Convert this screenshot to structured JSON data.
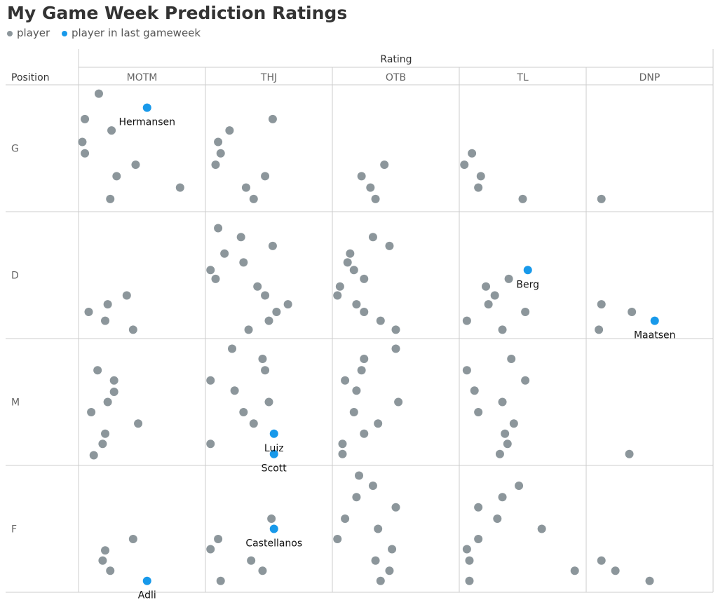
{
  "title": "My Game Week Prediction Ratings",
  "legend": {
    "player": "player",
    "last": "player in last gameweek"
  },
  "colors": {
    "player": "#8c969b",
    "last": "#1899ea",
    "grid": "#cccccc"
  },
  "chart_data": {
    "type": "scatter",
    "title": "My Game Week Prediction Ratings",
    "column_group_label": "Rating",
    "row_header": "Position",
    "columns": [
      "MOTM",
      "THJ",
      "OTB",
      "TL",
      "DNP"
    ],
    "rows": [
      "G",
      "D",
      "M",
      "F"
    ],
    "series": [
      {
        "name": "player",
        "color": "#8c969b"
      },
      {
        "name": "player in last gameweek",
        "color": "#1899ea"
      }
    ],
    "cells": {
      "G|MOTM": [
        [
          0.16,
          0.07
        ],
        [
          0.05,
          0.27
        ],
        [
          0.26,
          0.36
        ],
        [
          0.03,
          0.45
        ],
        [
          0.05,
          0.54
        ],
        [
          0.45,
          0.63
        ],
        [
          0.3,
          0.72
        ],
        [
          0.8,
          0.81
        ],
        [
          0.25,
          0.9
        ]
      ],
      "G|THJ": [
        [
          0.53,
          0.27
        ],
        [
          0.19,
          0.36
        ],
        [
          0.1,
          0.45
        ],
        [
          0.12,
          0.54
        ],
        [
          0.08,
          0.63
        ],
        [
          0.47,
          0.72
        ],
        [
          0.32,
          0.81
        ],
        [
          0.38,
          0.9
        ]
      ],
      "G|OTB": [
        [
          0.41,
          0.63
        ],
        [
          0.23,
          0.72
        ],
        [
          0.3,
          0.81
        ],
        [
          0.34,
          0.9
        ]
      ],
      "G|TL": [
        [
          0.1,
          0.54
        ],
        [
          0.04,
          0.63
        ],
        [
          0.17,
          0.72
        ],
        [
          0.15,
          0.81
        ],
        [
          0.5,
          0.9
        ]
      ],
      "G|DNP": [
        [
          0.12,
          0.9
        ]
      ],
      "D|MOTM": [
        [
          0.38,
          0.66
        ],
        [
          0.23,
          0.73
        ],
        [
          0.08,
          0.79
        ],
        [
          0.21,
          0.86
        ],
        [
          0.43,
          0.93
        ]
      ],
      "D|THJ": [
        [
          0.1,
          0.13
        ],
        [
          0.28,
          0.2
        ],
        [
          0.53,
          0.27
        ],
        [
          0.15,
          0.33
        ],
        [
          0.3,
          0.4
        ],
        [
          0.04,
          0.46
        ],
        [
          0.08,
          0.53
        ],
        [
          0.41,
          0.59
        ],
        [
          0.47,
          0.66
        ],
        [
          0.65,
          0.73
        ],
        [
          0.56,
          0.79
        ],
        [
          0.5,
          0.86
        ],
        [
          0.34,
          0.93
        ]
      ],
      "D|OTB": [
        [
          0.32,
          0.2
        ],
        [
          0.45,
          0.27
        ],
        [
          0.14,
          0.33
        ],
        [
          0.12,
          0.4
        ],
        [
          0.17,
          0.46
        ],
        [
          0.25,
          0.53
        ],
        [
          0.06,
          0.59
        ],
        [
          0.04,
          0.66
        ],
        [
          0.19,
          0.73
        ],
        [
          0.25,
          0.79
        ],
        [
          0.38,
          0.86
        ],
        [
          0.5,
          0.93
        ]
      ],
      "D|TL": [
        [
          0.39,
          0.53
        ],
        [
          0.21,
          0.59
        ],
        [
          0.28,
          0.66
        ],
        [
          0.23,
          0.73
        ],
        [
          0.52,
          0.79
        ],
        [
          0.06,
          0.86
        ],
        [
          0.34,
          0.93
        ]
      ],
      "D|DNP": [
        [
          0.12,
          0.73
        ],
        [
          0.36,
          0.79
        ],
        [
          0.1,
          0.93
        ]
      ],
      "M|MOTM": [
        [
          0.15,
          0.25
        ],
        [
          0.28,
          0.33
        ],
        [
          0.28,
          0.42
        ],
        [
          0.23,
          0.5
        ],
        [
          0.1,
          0.58
        ],
        [
          0.47,
          0.67
        ],
        [
          0.21,
          0.75
        ],
        [
          0.19,
          0.83
        ],
        [
          0.12,
          0.92
        ]
      ],
      "M|THJ": [
        [
          0.21,
          0.08
        ],
        [
          0.45,
          0.16
        ],
        [
          0.47,
          0.25
        ],
        [
          0.04,
          0.33
        ],
        [
          0.23,
          0.41
        ],
        [
          0.5,
          0.5
        ],
        [
          0.3,
          0.58
        ],
        [
          0.38,
          0.67
        ],
        [
          0.04,
          0.83
        ]
      ],
      "M|OTB": [
        [
          0.5,
          0.08
        ],
        [
          0.25,
          0.16
        ],
        [
          0.23,
          0.25
        ],
        [
          0.1,
          0.33
        ],
        [
          0.19,
          0.41
        ],
        [
          0.52,
          0.5
        ],
        [
          0.17,
          0.58
        ],
        [
          0.36,
          0.67
        ],
        [
          0.25,
          0.75
        ],
        [
          0.08,
          0.83
        ],
        [
          0.08,
          0.91
        ]
      ],
      "M|TL": [
        [
          0.41,
          0.16
        ],
        [
          0.06,
          0.25
        ],
        [
          0.52,
          0.33
        ],
        [
          0.12,
          0.41
        ],
        [
          0.34,
          0.5
        ],
        [
          0.15,
          0.58
        ],
        [
          0.43,
          0.67
        ],
        [
          0.36,
          0.75
        ],
        [
          0.38,
          0.83
        ],
        [
          0.32,
          0.91
        ]
      ],
      "M|DNP": [
        [
          0.34,
          0.91
        ]
      ],
      "F|MOTM": [
        [
          0.43,
          0.58
        ],
        [
          0.21,
          0.67
        ],
        [
          0.19,
          0.75
        ],
        [
          0.25,
          0.83
        ]
      ],
      "F|THJ": [
        [
          0.52,
          0.42
        ],
        [
          0.1,
          0.58
        ],
        [
          0.04,
          0.66
        ],
        [
          0.36,
          0.75
        ],
        [
          0.45,
          0.83
        ],
        [
          0.12,
          0.91
        ]
      ],
      "F|OTB": [
        [
          0.21,
          0.08
        ],
        [
          0.32,
          0.16
        ],
        [
          0.19,
          0.25
        ],
        [
          0.5,
          0.33
        ],
        [
          0.1,
          0.42
        ],
        [
          0.36,
          0.5
        ],
        [
          0.04,
          0.58
        ],
        [
          0.47,
          0.66
        ],
        [
          0.34,
          0.75
        ],
        [
          0.45,
          0.83
        ],
        [
          0.38,
          0.91
        ]
      ],
      "F|TL": [
        [
          0.47,
          0.16
        ],
        [
          0.34,
          0.25
        ],
        [
          0.15,
          0.33
        ],
        [
          0.3,
          0.42
        ],
        [
          0.65,
          0.5
        ],
        [
          0.15,
          0.58
        ],
        [
          0.06,
          0.66
        ],
        [
          0.08,
          0.75
        ],
        [
          0.91,
          0.83
        ],
        [
          0.08,
          0.91
        ]
      ],
      "F|DNP": [
        [
          0.12,
          0.75
        ],
        [
          0.23,
          0.83
        ],
        [
          0.5,
          0.91
        ]
      ]
    },
    "highlighted": [
      {
        "label": "Hermansen",
        "row": "G",
        "column": "MOTM",
        "x": 0.54,
        "y": 0.18
      },
      {
        "label": "Berg",
        "row": "D",
        "column": "TL",
        "x": 0.54,
        "y": 0.46
      },
      {
        "label": "Maatsen",
        "row": "D",
        "column": "DNP",
        "x": 0.54,
        "y": 0.86
      },
      {
        "label": "Luiz",
        "row": "M",
        "column": "THJ",
        "x": 0.54,
        "y": 0.75
      },
      {
        "label": "Scott",
        "row": "M",
        "column": "THJ",
        "x": 0.54,
        "y": 0.91
      },
      {
        "label": "Castellanos",
        "row": "F",
        "column": "THJ",
        "x": 0.54,
        "y": 0.5
      },
      {
        "label": "Adli",
        "row": "F",
        "column": "MOTM",
        "x": 0.54,
        "y": 0.91
      }
    ]
  }
}
